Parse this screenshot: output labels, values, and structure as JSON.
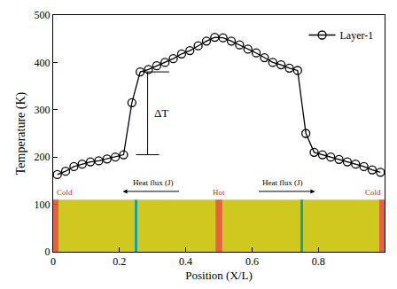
{
  "chart_data": {
    "type": "line",
    "xlabel": "Position (X/L)",
    "ylabel": "Temperature (K)",
    "series": [
      {
        "name": "Layer-1",
        "color": "#000000",
        "marker": "open circle",
        "line_style": "solid",
        "x": [
          0.0125,
          0.0375,
          0.0625,
          0.0875,
          0.1125,
          0.1375,
          0.1625,
          0.1875,
          0.2125,
          0.2375,
          0.2625,
          0.2875,
          0.3125,
          0.3375,
          0.3625,
          0.3875,
          0.4125,
          0.4375,
          0.4625,
          0.4875,
          0.5125,
          0.5375,
          0.5625,
          0.5875,
          0.6125,
          0.6375,
          0.6625,
          0.6875,
          0.7125,
          0.7375,
          0.7625,
          0.7875,
          0.8125,
          0.8375,
          0.8625,
          0.8875,
          0.9125,
          0.9375,
          0.9625,
          0.9875
        ],
        "values": [
          163,
          170,
          180,
          185,
          190,
          192,
          196,
          200,
          205,
          315,
          380,
          385,
          393,
          400,
          408,
          418,
          425,
          435,
          445,
          453,
          452,
          445,
          437,
          428,
          420,
          410,
          400,
          395,
          388,
          383,
          250,
          210,
          205,
          200,
          195,
          190,
          185,
          180,
          173,
          168
        ]
      }
    ],
    "xlim": [
      0,
      1
    ],
    "xticks": [
      0,
      0.2,
      0.4,
      0.6,
      0.8
    ],
    "ylim": [
      0,
      500
    ],
    "yticks": [
      0,
      100,
      200,
      300,
      400,
      500
    ],
    "legend": "upper right",
    "grid": false,
    "annotations": [
      "ΔT",
      "Cold",
      "Hot",
      "Cold",
      "Heat flux (J)",
      "Heat flux (J)"
    ]
  }
}
